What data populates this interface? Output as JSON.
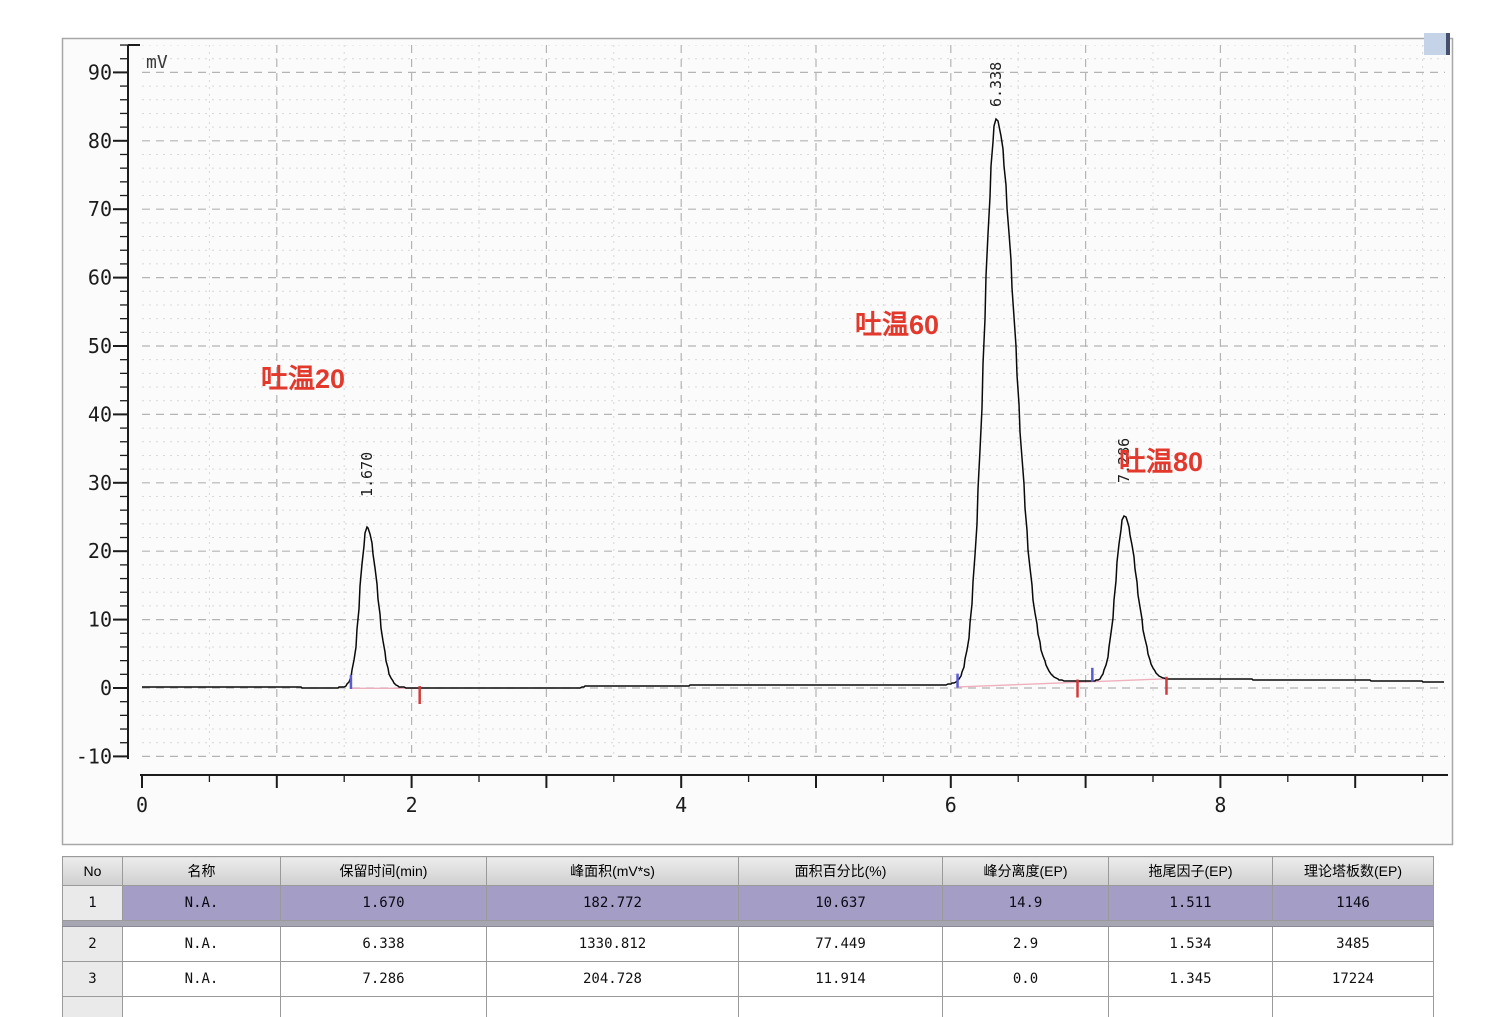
{
  "chart_data": {
    "type": "line",
    "title": "",
    "xlabel": "",
    "ylabel": "mV",
    "xlim": [
      0,
      9.67
    ],
    "ylim": [
      -10,
      94
    ],
    "x_ticks": [
      0,
      2,
      4,
      6,
      8
    ],
    "x_major_tick_step": 1,
    "x_minor_tick_step": 0.5,
    "y_ticks": [
      -10,
      0,
      10,
      20,
      30,
      40,
      50,
      60,
      70,
      80,
      90
    ],
    "y_minor_tick_step": 2,
    "grid": "dashed",
    "baseline_mv": [
      [
        0,
        0.1
      ],
      [
        2.2,
        0.05
      ],
      [
        3.26,
        0.05
      ],
      [
        3.3,
        0.35
      ],
      [
        5.75,
        0.4
      ],
      [
        6.5,
        0.7
      ],
      [
        6.95,
        1.0
      ],
      [
        7.12,
        1.05
      ],
      [
        7.5,
        1.3
      ],
      [
        8.2,
        1.25
      ],
      [
        9.1,
        1.1
      ],
      [
        9.5,
        0.95
      ],
      [
        9.67,
        0.8
      ]
    ],
    "peaks": [
      {
        "rt": 1.67,
        "height_mv": 23.5,
        "sigma_left": 0.052,
        "sigma_right": 0.075,
        "label": "1.670"
      },
      {
        "rt": 6.338,
        "height_mv": 82.5,
        "sigma_left": 0.092,
        "sigma_right": 0.14,
        "label": "6.338"
      },
      {
        "rt": 7.286,
        "height_mv": 24.0,
        "sigma_left": 0.062,
        "sigma_right": 0.092,
        "label": "7.286"
      }
    ],
    "annotations": [
      {
        "text": "吐温20",
        "t": 1.19,
        "mv": 44.0
      },
      {
        "text": "吐温60",
        "t": 5.6,
        "mv": 52.5
      },
      {
        "text": "吐温80",
        "t": 7.56,
        "mv": 32.0
      }
    ],
    "integration": {
      "baselines": [
        {
          "t1": 1.55,
          "mv1": -0.05,
          "t2": 2.06,
          "mv2": -0.05
        },
        {
          "t1": 6.05,
          "mv1": 0.15,
          "t2": 7.6,
          "mv2": 1.35
        }
      ],
      "peak_start_marks": [
        {
          "t": 1.55,
          "mv": 0.0
        },
        {
          "t": 6.05,
          "mv": 0.2
        },
        {
          "t": 7.05,
          "mv": 1.05
        }
      ],
      "peak_end_marks": [
        {
          "t": 2.06,
          "mv": 0.0
        },
        {
          "t": 6.94,
          "mv": 0.95
        },
        {
          "t": 7.6,
          "mv": 1.35
        }
      ]
    }
  },
  "table": {
    "headers": [
      "No",
      "名称",
      "保留时间(min)",
      "峰面积(mV*s)",
      "面积百分比(%)",
      "峰分离度(EP)",
      "拖尾因子(EP)",
      "理论塔板数(EP)"
    ],
    "rows": [
      [
        "1",
        "N.A.",
        "1.670",
        "182.772",
        "10.637",
        "14.9",
        "1.511",
        "1146"
      ],
      [
        "2",
        "N.A.",
        "6.338",
        "1330.812",
        "77.449",
        "2.9",
        "1.534",
        "3485"
      ],
      [
        "3",
        "N.A.",
        "7.286",
        "204.728",
        "11.914",
        "0.0",
        "1.345",
        "17224"
      ]
    ],
    "selected_row": 1
  },
  "colors": {
    "annotation_red": "#e2392c",
    "selected_row_purple": "#a49ec6",
    "marker_blue": "#5a5ad2",
    "marker_red": "#d23c3c",
    "integration_pink": "#eeb0bc",
    "grid_major": "#b4b4b4",
    "grid_minor": "#d8d8d8",
    "panel_bg": "#fbfbfb",
    "scroll_corner_blue": "#c5d3e9"
  }
}
